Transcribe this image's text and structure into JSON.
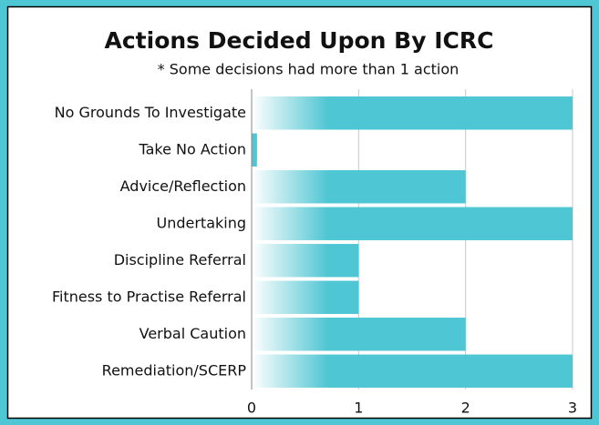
{
  "chart_data": {
    "type": "hbar",
    "title": "Actions Decided Upon By ICRC",
    "subtitle": "* Some decisions had more than 1 action",
    "categories": [
      "No Grounds To Investigate",
      "Take No Action",
      "Advice/Reflection",
      "Undertaking",
      "Discipline Referral",
      "Fitness to Practise Referral",
      "Verbal Caution",
      "Remediation/SCERP"
    ],
    "values": [
      3,
      0.05,
      2,
      3,
      1,
      1,
      2,
      3
    ],
    "color": "#4fc6d3",
    "xlim": [
      0,
      3
    ],
    "xticks": [
      0,
      1,
      2,
      3
    ],
    "grid": true
  }
}
